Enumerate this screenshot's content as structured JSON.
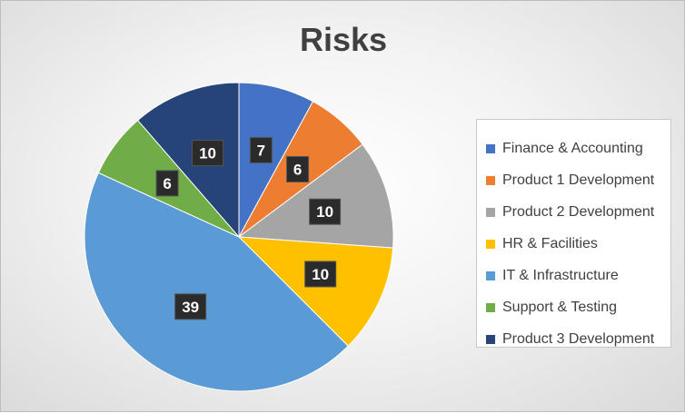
{
  "chart_data": {
    "type": "pie",
    "title": "Risks",
    "categories": [
      "Finance & Accounting",
      "Product 1 Development",
      "Product 2 Development",
      "HR & Facilities",
      "IT & Infrastructure",
      "Support & Testing",
      "Product 3 Development"
    ],
    "values": [
      7,
      6,
      10,
      10,
      39,
      6,
      10
    ],
    "colors": [
      "#4472C4",
      "#ED7D31",
      "#A5A5A5",
      "#FFC000",
      "#5B9BD5",
      "#70AD47",
      "#264478"
    ],
    "data_labels": true,
    "legend_position": "right"
  }
}
